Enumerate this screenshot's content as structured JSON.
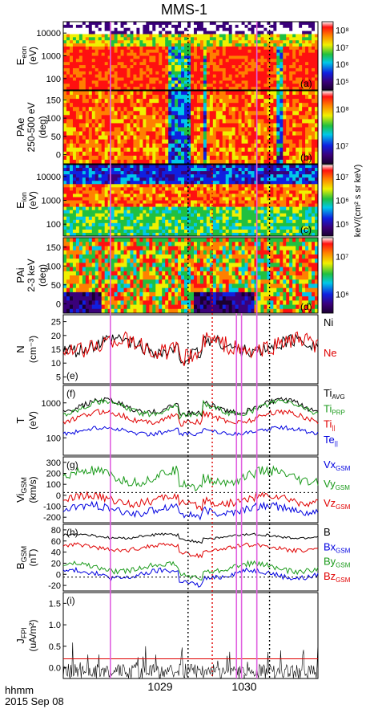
{
  "title": "MMS-1",
  "time_axis": {
    "ticks": [
      "1029",
      "1030"
    ],
    "corner_label_1": "hhmm",
    "corner_label_2": "2015 Sep 08"
  },
  "colorbars": {
    "electron_units": "",
    "ion_units": "keV/(cm² s sr keV)",
    "eon_ticks": [
      "10⁸",
      "10⁷",
      "10⁶",
      "10⁵"
    ],
    "pae_ticks": [
      "10⁸",
      "10⁷"
    ],
    "ion_ticks": [
      "10⁷",
      "10⁶",
      "10⁵"
    ],
    "pai_ticks": [
      "10⁷",
      "10⁶"
    ]
  },
  "chart_data": [
    {
      "type": "heatmap",
      "panel": "(a)",
      "ylabel_main": "E",
      "ylabel_sub": "eon",
      "ylabel_unit": "(eV)",
      "yticks": [
        "10000",
        "1000",
        "100"
      ],
      "ylim": [
        30,
        20000
      ],
      "yscale": "log"
    },
    {
      "type": "heatmap",
      "panel": "(b)",
      "ylabel_line1": "PAe",
      "ylabel_line2": "250-500 eV",
      "ylabel_unit": "(deg)",
      "yticks": [
        "150",
        "100",
        "50",
        "0"
      ],
      "ylim": [
        0,
        180
      ]
    },
    {
      "type": "heatmap",
      "panel": "(c)",
      "ylabel_main": "E",
      "ylabel_sub": "ion",
      "ylabel_unit": "(eV)",
      "yticks": [
        "10000",
        "1000",
        "100"
      ],
      "ylim": [
        10,
        30000
      ],
      "yscale": "log"
    },
    {
      "type": "heatmap",
      "panel": "(d)",
      "ylabel_line1": "PAi",
      "ylabel_line2": "2-3 keV",
      "ylabel_unit": "(deg)",
      "yticks": [
        "150",
        "100",
        "50",
        "0"
      ],
      "ylim": [
        0,
        180
      ]
    },
    {
      "type": "line",
      "panel": "(e)",
      "ylabel_main": "N",
      "ylabel_unit": "(cm⁻³)",
      "yticks": [
        "25",
        "20",
        "15",
        "10",
        "5"
      ],
      "ylim": [
        3,
        28
      ],
      "legend": [
        {
          "text": "Ni",
          "color": "#000000"
        },
        {
          "text": "Ne",
          "color": "#e00000"
        }
      ]
    },
    {
      "type": "line",
      "panel": "(f)",
      "ylabel_main": "T",
      "ylabel_unit": "(eV)",
      "yticks": [
        "1000",
        "100"
      ],
      "ylim": [
        30,
        2000
      ],
      "yscale": "log",
      "legend": [
        {
          "text": "Ti",
          "sub": "AVG",
          "color": "#000000"
        },
        {
          "text": "Ti",
          "sub": "PRP",
          "color": "#1a9a1a"
        },
        {
          "text": "Ti",
          "sub": "||",
          "color": "#e00000"
        },
        {
          "text": "Te",
          "sub": "||",
          "color": "#0000e0"
        }
      ]
    },
    {
      "type": "line",
      "panel": "(g)",
      "ylabel_main": "Vi",
      "ylabel_sub": "GSM",
      "ylabel_unit": "(km/s)",
      "yticks": [
        "300",
        "200",
        "100",
        "0",
        "-100",
        "-200"
      ],
      "ylim": [
        -280,
        330
      ],
      "legend": [
        {
          "text": "Vx",
          "sub": "GSM",
          "color": "#0000e0"
        },
        {
          "text": "Vy",
          "sub": "GSM",
          "color": "#1a9a1a"
        },
        {
          "text": "Vz",
          "sub": "GSM",
          "color": "#e00000"
        }
      ]
    },
    {
      "type": "line",
      "panel": "(h)",
      "ylabel_main": "B",
      "ylabel_sub": "GSM",
      "ylabel_unit": "(nT)",
      "yticks": [
        "80",
        "60",
        "40",
        "20",
        "0",
        "-20"
      ],
      "ylim": [
        -25,
        95
      ],
      "legend": [
        {
          "text": "B",
          "color": "#000000"
        },
        {
          "text": "Bx",
          "sub": "GSM",
          "color": "#0000e0"
        },
        {
          "text": "By",
          "sub": "GSM",
          "color": "#1a9a1a"
        },
        {
          "text": "Bz",
          "sub": "GSM",
          "color": "#e00000"
        }
      ]
    },
    {
      "type": "line",
      "panel": "(i)",
      "ylabel_main": "J",
      "ylabel_sub": "FPI",
      "ylabel_unit": "(uA/m²)",
      "yticks": [
        "1.5",
        "1.0",
        "0.5",
        "0.0"
      ],
      "ylim": [
        0,
        1.75
      ],
      "threshold": 0.4
    }
  ]
}
